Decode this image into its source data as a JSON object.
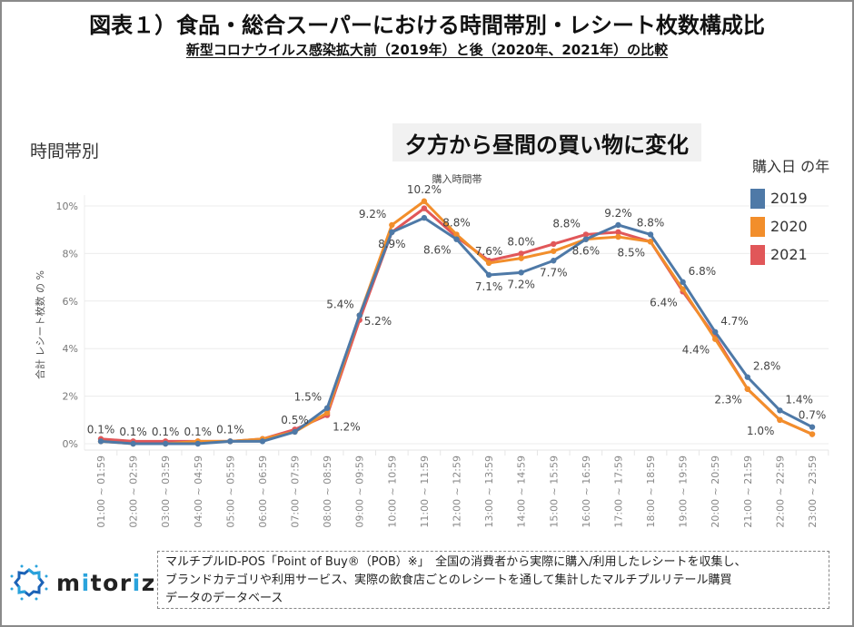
{
  "header": {
    "title": "図表１）食品・総合スーパーにおける時間帯別・レシート枚数構成比",
    "subtitle": "新型コロナウイルス感染拡大前（2019年）と後（2020年、2021年）の比較"
  },
  "section_label": "時間帯別",
  "callout": "夕方から昼間の買い物に変化",
  "legend": {
    "title": "購入日 の年",
    "items": [
      {
        "label": "2019",
        "color": "#4e79a7"
      },
      {
        "label": "2020",
        "color": "#f28e2b"
      },
      {
        "label": "2021",
        "color": "#e15759"
      }
    ]
  },
  "note": {
    "lines": [
      "マルチプルID-POS「Point of Buy®（POB）※」　全国の消費者から実際に購入/利用したレシートを収集し、",
      "ブランドカテゴリや利用サービス、実際の飲食店ごとのレシートを通して集計したマルチプルリテール購買",
      "データのデータベース"
    ]
  },
  "logo": {
    "prefix": "m",
    "accent1": "i",
    "mid": "tor",
    "accent2": "i",
    "suffix": "z"
  },
  "chart_data": {
    "type": "line",
    "title": "購入時間帯",
    "xlabel": "",
    "ylabel": "合計 レシート枚数 の %",
    "ylim": [
      0,
      10.5
    ],
    "yticks": [
      0,
      2,
      4,
      6,
      8,
      10
    ],
    "ytick_labels": [
      "0%",
      "2%",
      "4%",
      "6%",
      "8%",
      "10%"
    ],
    "grid": true,
    "legend_position": "right",
    "categories": [
      "01:00 ~ 01:59",
      "02:00 ~ 02:59",
      "03:00 ~ 03:59",
      "04:00 ~ 04:59",
      "05:00 ~ 05:59",
      "06:00 ~ 06:59",
      "07:00 ~ 07:59",
      "08:00 ~ 08:59",
      "09:00 ~ 09:59",
      "10:00 ~ 10:59",
      "11:00 ~ 11:59",
      "12:00 ~ 12:59",
      "13:00 ~ 13:59",
      "14:00 ~ 14:59",
      "15:00 ~ 15:59",
      "16:00 ~ 16:59",
      "17:00 ~ 17:59",
      "18:00 ~ 18:59",
      "19:00 ~ 19:59",
      "20:00 ~ 20:59",
      "21:00 ~ 21:59",
      "22:00 ~ 22:59",
      "23:00 ~ 23:59"
    ],
    "series": [
      {
        "name": "2021",
        "color": "#e15759",
        "values": [
          0.2,
          0.1,
          0.1,
          0.1,
          0.1,
          0.2,
          0.6,
          1.2,
          5.2,
          8.9,
          9.9,
          8.7,
          7.7,
          8.0,
          8.4,
          8.8,
          8.9,
          8.5,
          6.4,
          4.5,
          2.3,
          1.0,
          0.4
        ]
      },
      {
        "name": "2020",
        "color": "#f28e2b",
        "values": [
          0.1,
          0.0,
          0.0,
          0.1,
          0.1,
          0.2,
          0.5,
          1.3,
          5.4,
          9.2,
          10.2,
          8.8,
          7.6,
          7.8,
          8.1,
          8.6,
          8.7,
          8.5,
          6.5,
          4.4,
          2.3,
          1.0,
          0.4
        ]
      },
      {
        "name": "2019",
        "color": "#4e79a7",
        "values": [
          0.1,
          0.0,
          0.0,
          0.0,
          0.1,
          0.1,
          0.5,
          1.5,
          5.4,
          8.9,
          9.5,
          8.6,
          7.1,
          7.2,
          7.7,
          8.6,
          9.2,
          8.8,
          6.8,
          4.7,
          2.8,
          1.4,
          0.7
        ]
      }
    ],
    "data_labels": [
      {
        "text": "0.1%",
        "index": 0,
        "value": 0.1,
        "position": "above"
      },
      {
        "text": "0.1%",
        "index": 1,
        "value": 0.0,
        "position": "above"
      },
      {
        "text": "0.1%",
        "index": 2,
        "value": 0.0,
        "position": "above"
      },
      {
        "text": "0.1%",
        "index": 3,
        "value": 0.0,
        "position": "above"
      },
      {
        "text": "0.1%",
        "index": 4,
        "value": 0.1,
        "position": "above"
      },
      {
        "text": "0.5%",
        "index": 6,
        "value": 0.5,
        "position": "above"
      },
      {
        "text": "1.5%",
        "index": 7,
        "value": 1.5,
        "position": "above-left"
      },
      {
        "text": "1.2%",
        "index": 7,
        "value": 1.2,
        "position": "below-right"
      },
      {
        "text": "5.4%",
        "index": 8,
        "value": 5.4,
        "position": "above-left"
      },
      {
        "text": "5.2%",
        "index": 8,
        "value": 5.2,
        "position": "right"
      },
      {
        "text": "9.2%",
        "index": 9,
        "value": 9.2,
        "position": "above-left"
      },
      {
        "text": "8.9%",
        "index": 9,
        "value": 8.9,
        "position": "below"
      },
      {
        "text": "10.2%",
        "index": 10,
        "value": 10.2,
        "position": "above"
      },
      {
        "text": "8.8%",
        "index": 11,
        "value": 8.8,
        "position": "above"
      },
      {
        "text": "8.6%",
        "index": 11,
        "value": 8.6,
        "position": "below-left"
      },
      {
        "text": "7.6%",
        "index": 12,
        "value": 7.6,
        "position": "above"
      },
      {
        "text": "7.1%",
        "index": 12,
        "value": 7.1,
        "position": "below"
      },
      {
        "text": "8.0%",
        "index": 13,
        "value": 8.0,
        "position": "above"
      },
      {
        "text": "7.2%",
        "index": 13,
        "value": 7.2,
        "position": "below"
      },
      {
        "text": "7.7%",
        "index": 14,
        "value": 7.7,
        "position": "below"
      },
      {
        "text": "8.8%",
        "index": 15,
        "value": 8.8,
        "position": "above-left"
      },
      {
        "text": "8.6%",
        "index": 15,
        "value": 8.6,
        "position": "below"
      },
      {
        "text": "9.2%",
        "index": 16,
        "value": 9.2,
        "position": "above"
      },
      {
        "text": "8.5%",
        "index": 17,
        "value": 8.5,
        "position": "below-left"
      },
      {
        "text": "8.8%",
        "index": 17,
        "value": 8.8,
        "position": "above"
      },
      {
        "text": "6.8%",
        "index": 18,
        "value": 6.8,
        "position": "above-right"
      },
      {
        "text": "6.4%",
        "index": 18,
        "value": 6.4,
        "position": "below-left"
      },
      {
        "text": "4.7%",
        "index": 19,
        "value": 4.7,
        "position": "above-right"
      },
      {
        "text": "4.4%",
        "index": 19,
        "value": 4.4,
        "position": "below-left"
      },
      {
        "text": "2.8%",
        "index": 20,
        "value": 2.8,
        "position": "above-right"
      },
      {
        "text": "2.3%",
        "index": 20,
        "value": 2.3,
        "position": "below-left"
      },
      {
        "text": "1.4%",
        "index": 21,
        "value": 1.4,
        "position": "above-right"
      },
      {
        "text": "1.0%",
        "index": 21,
        "value": 1.0,
        "position": "below-left"
      },
      {
        "text": "0.7%",
        "index": 22,
        "value": 0.7,
        "position": "above"
      }
    ]
  }
}
